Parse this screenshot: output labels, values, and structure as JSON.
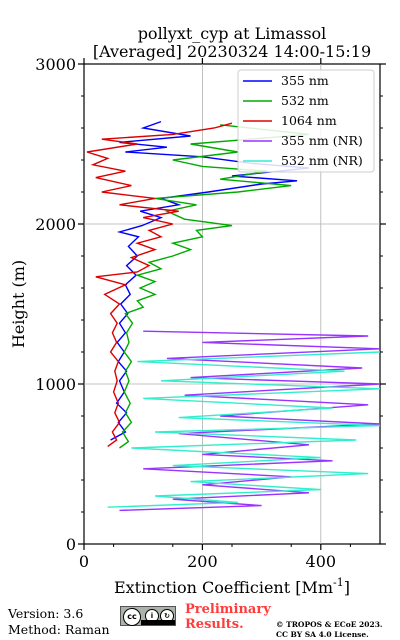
{
  "chart_data": {
    "type": "line",
    "title_line1": "pollyxt_cyp at Limassol",
    "title_line2": "[Averaged] 20230324 14:00-15:19",
    "xlabel": "Extinction Coefficient [Mm",
    "xlabel_sup": "-1",
    "xlabel_end": "]",
    "ylabel": "Height (m)",
    "xlim": [
      0,
      500
    ],
    "ylim": [
      0,
      3000
    ],
    "x_ticks": [
      0,
      200,
      400
    ],
    "y_ticks": [
      0,
      1000,
      2000,
      3000
    ],
    "grid": true,
    "legend_position": "top-right",
    "series": [
      {
        "name": "355 nm",
        "color": "#0000ff",
        "points": [
          [
            45,
            650
          ],
          [
            70,
            700
          ],
          [
            58,
            760
          ],
          [
            72,
            820
          ],
          [
            55,
            880
          ],
          [
            68,
            950
          ],
          [
            60,
            1020
          ],
          [
            72,
            1080
          ],
          [
            58,
            1140
          ],
          [
            68,
            1200
          ],
          [
            56,
            1260
          ],
          [
            70,
            1320
          ],
          [
            60,
            1380
          ],
          [
            74,
            1440
          ],
          [
            62,
            1500
          ],
          [
            78,
            1560
          ],
          [
            70,
            1620
          ],
          [
            88,
            1680
          ],
          [
            72,
            1740
          ],
          [
            90,
            1800
          ],
          [
            75,
            1860
          ],
          [
            92,
            1920
          ],
          [
            60,
            1950
          ],
          [
            98,
            1990
          ],
          [
            130,
            2040
          ],
          [
            95,
            2080
          ],
          [
            160,
            2120
          ],
          [
            130,
            2160
          ],
          [
            210,
            2200
          ],
          [
            300,
            2250
          ],
          [
            360,
            2270
          ],
          [
            250,
            2300
          ],
          [
            380,
            2350
          ],
          [
            280,
            2380
          ],
          [
            200,
            2420
          ],
          [
            70,
            2450
          ],
          [
            140,
            2480
          ],
          [
            60,
            2510
          ],
          [
            180,
            2550
          ],
          [
            100,
            2600
          ],
          [
            130,
            2640
          ]
        ]
      },
      {
        "name": "532 nm",
        "color": "#00aa00",
        "points": [
          [
            60,
            600
          ],
          [
            75,
            640
          ],
          [
            65,
            700
          ],
          [
            80,
            760
          ],
          [
            70,
            820
          ],
          [
            78,
            880
          ],
          [
            68,
            950
          ],
          [
            76,
            1020
          ],
          [
            70,
            1080
          ],
          [
            80,
            1140
          ],
          [
            68,
            1200
          ],
          [
            76,
            1260
          ],
          [
            72,
            1320
          ],
          [
            82,
            1380
          ],
          [
            70,
            1440
          ],
          [
            100,
            1480
          ],
          [
            90,
            1520
          ],
          [
            120,
            1560
          ],
          [
            95,
            1600
          ],
          [
            120,
            1640
          ],
          [
            90,
            1680
          ],
          [
            130,
            1720
          ],
          [
            110,
            1760
          ],
          [
            150,
            1800
          ],
          [
            180,
            1840
          ],
          [
            150,
            1880
          ],
          [
            200,
            1920
          ],
          [
            190,
            1960
          ],
          [
            250,
            1990
          ],
          [
            170,
            2030
          ],
          [
            140,
            2080
          ],
          [
            190,
            2120
          ],
          [
            120,
            2160
          ],
          [
            260,
            2200
          ],
          [
            350,
            2240
          ],
          [
            230,
            2280
          ],
          [
            310,
            2330
          ],
          [
            200,
            2360
          ],
          [
            150,
            2400
          ],
          [
            260,
            2450
          ],
          [
            180,
            2500
          ],
          [
            380,
            2560
          ],
          [
            230,
            2620
          ]
        ]
      },
      {
        "name": "1064 nm",
        "color": "#dd0000",
        "points": [
          [
            40,
            610
          ],
          [
            55,
            650
          ],
          [
            48,
            700
          ],
          [
            60,
            760
          ],
          [
            52,
            820
          ],
          [
            58,
            880
          ],
          [
            50,
            950
          ],
          [
            56,
            1020
          ],
          [
            52,
            1080
          ],
          [
            58,
            1140
          ],
          [
            45,
            1200
          ],
          [
            55,
            1260
          ],
          [
            48,
            1320
          ],
          [
            56,
            1380
          ],
          [
            45,
            1440
          ],
          [
            60,
            1500
          ],
          [
            35,
            1560
          ],
          [
            70,
            1620
          ],
          [
            20,
            1670
          ],
          [
            90,
            1700
          ],
          [
            110,
            1740
          ],
          [
            80,
            1790
          ],
          [
            120,
            1840
          ],
          [
            90,
            1880
          ],
          [
            130,
            1920
          ],
          [
            110,
            1960
          ],
          [
            150,
            2000
          ],
          [
            100,
            2040
          ],
          [
            160,
            2080
          ],
          [
            60,
            2120
          ],
          [
            120,
            2160
          ],
          [
            30,
            2200
          ],
          [
            80,
            2240
          ],
          [
            20,
            2290
          ],
          [
            70,
            2330
          ],
          [
            15,
            2370
          ],
          [
            40,
            2410
          ],
          [
            5,
            2450
          ],
          [
            90,
            2500
          ],
          [
            30,
            2530
          ],
          [
            150,
            2560
          ],
          [
            220,
            2600
          ],
          [
            250,
            2630
          ]
        ]
      },
      {
        "name": "355 nm (NR)",
        "color": "#9933ff",
        "points": [
          [
            60,
            210
          ],
          [
            300,
            240
          ],
          [
            150,
            280
          ],
          [
            380,
            320
          ],
          [
            200,
            370
          ],
          [
            350,
            420
          ],
          [
            100,
            470
          ],
          [
            420,
            520
          ],
          [
            200,
            560
          ],
          [
            380,
            620
          ],
          [
            160,
            690
          ],
          [
            500,
            750
          ],
          [
            230,
            800
          ],
          [
            480,
            870
          ],
          [
            170,
            930
          ],
          [
            500,
            1000
          ],
          [
            180,
            1040
          ],
          [
            470,
            1100
          ],
          [
            140,
            1160
          ],
          [
            500,
            1220
          ],
          [
            200,
            1260
          ],
          [
            480,
            1300
          ],
          [
            100,
            1330
          ]
        ]
      },
      {
        "name": "532 nm (NR)",
        "color": "#33eecc",
        "points": [
          [
            40,
            230
          ],
          [
            260,
            260
          ],
          [
            120,
            300
          ],
          [
            400,
            340
          ],
          [
            180,
            390
          ],
          [
            480,
            440
          ],
          [
            150,
            490
          ],
          [
            400,
            540
          ],
          [
            80,
            600
          ],
          [
            460,
            650
          ],
          [
            120,
            700
          ],
          [
            500,
            740
          ],
          [
            160,
            790
          ],
          [
            420,
            850
          ],
          [
            100,
            910
          ],
          [
            500,
            970
          ],
          [
            130,
            1020
          ],
          [
            440,
            1080
          ],
          [
            90,
            1140
          ],
          [
            500,
            1200
          ]
        ]
      }
    ]
  },
  "footer": {
    "version": "Version: 3.6",
    "method": "Method: Raman",
    "preliminary_line1": "Preliminary",
    "preliminary_line2": "Results.",
    "copyright_line1": "© TROPOS & ECoE 2023.",
    "copyright_line2": "CC BY SA 4.0 License."
  }
}
